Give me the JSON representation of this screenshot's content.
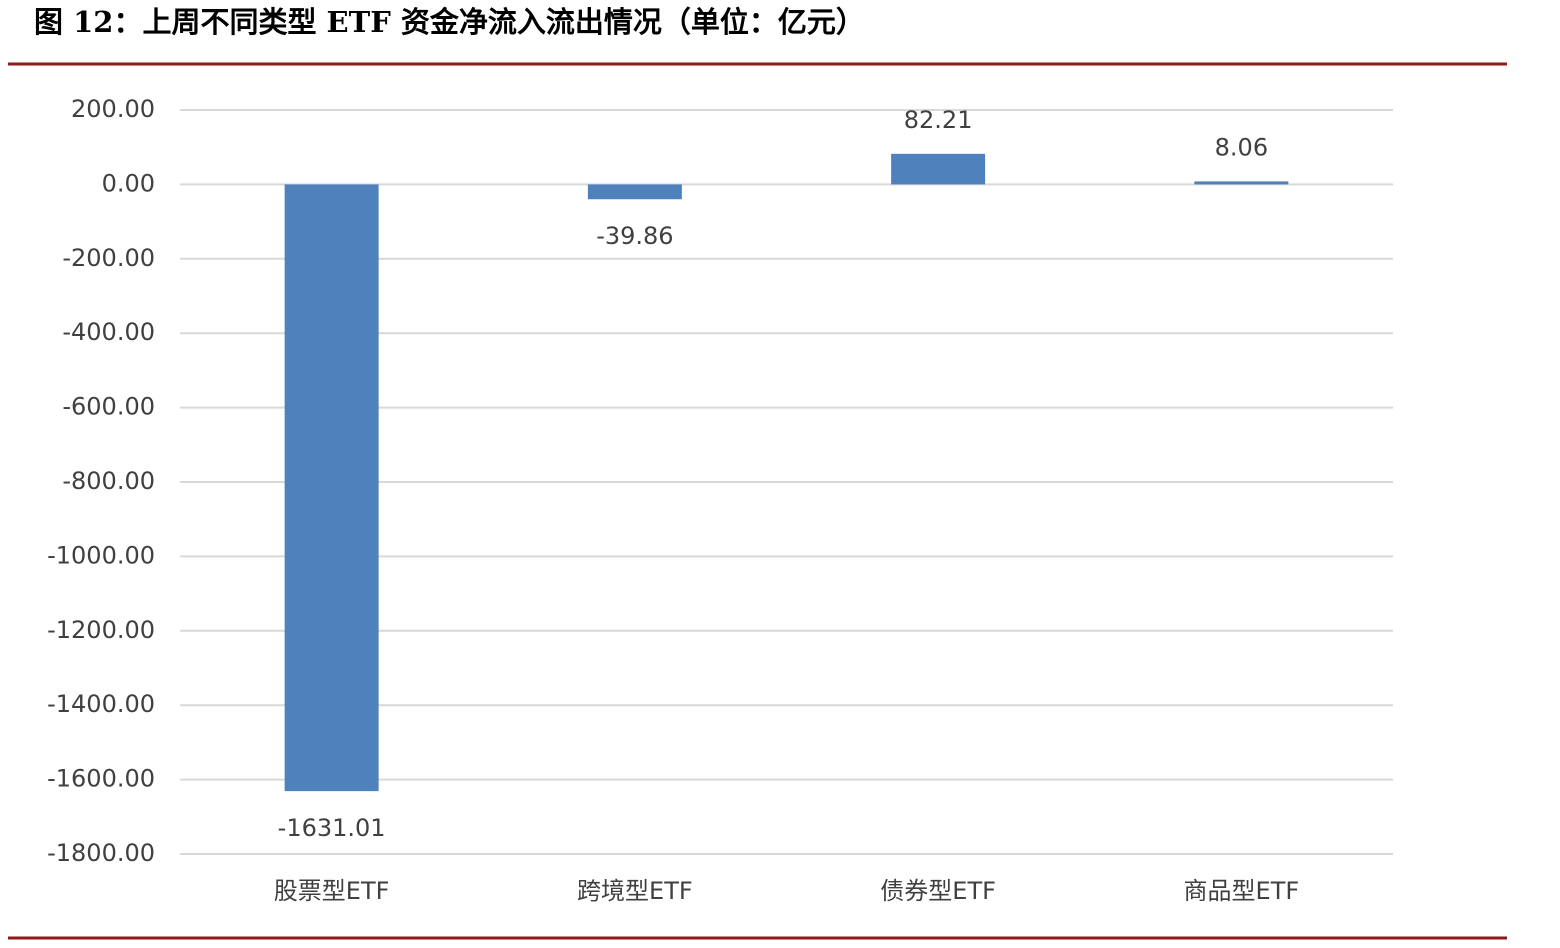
{
  "chart_data": {
    "type": "bar",
    "title": "图 12：上周不同类型 ETF 资金净流入流出情况（单位：亿元）",
    "categories": [
      "股票型ETF",
      "跨境型ETF",
      "债券型ETF",
      "商品型ETF"
    ],
    "values": [
      -1631.01,
      -39.86,
      82.21,
      8.06
    ],
    "color": "#4f81bd",
    "ylim": [
      -1800,
      200
    ],
    "yticks": [
      {
        "value": 200,
        "label": "200.00"
      },
      {
        "value": 0,
        "label": "0.00"
      },
      {
        "value": -200,
        "label": "-200.00"
      },
      {
        "value": -400,
        "label": "-400.00"
      },
      {
        "value": -600,
        "label": "-600.00"
      },
      {
        "value": -800,
        "label": "-800.00"
      },
      {
        "value": -1000,
        "label": "-1000.00"
      },
      {
        "value": -1200,
        "label": "-1200.00"
      },
      {
        "value": -1400,
        "label": "-1400.00"
      },
      {
        "value": -1600,
        "label": "-1600.00"
      },
      {
        "value": -1800,
        "label": "-1800.00"
      }
    ],
    "grid": true
  }
}
